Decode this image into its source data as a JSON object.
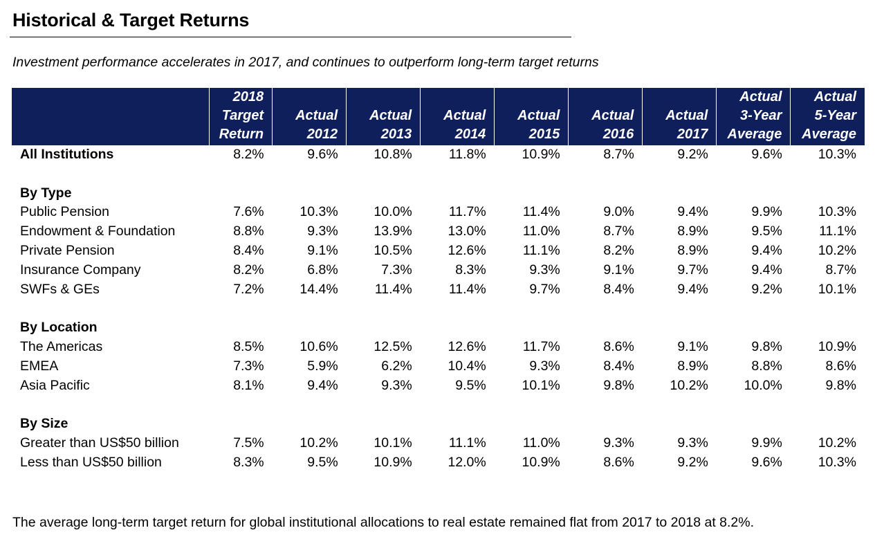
{
  "title": "Historical & Target Returns",
  "subtitle": "Investment performance accelerates in 2017, and continues to outperform long-term target returns",
  "header": {
    "columns": [
      [
        "2018",
        "Target",
        "Return"
      ],
      [
        "",
        "Actual",
        "2012"
      ],
      [
        "",
        "Actual",
        "2013"
      ],
      [
        "",
        "Actual",
        "2014"
      ],
      [
        "",
        "Actual",
        "2015"
      ],
      [
        "",
        "Actual",
        "2016"
      ],
      [
        "",
        "Actual",
        "2017"
      ],
      [
        "Actual",
        "3-Year",
        "Average"
      ],
      [
        "Actual",
        "5-Year",
        "Average"
      ]
    ]
  },
  "rows": {
    "all": {
      "label": "All Institutions",
      "values": [
        "8.2%",
        "9.6%",
        "10.8%",
        "11.8%",
        "10.9%",
        "8.7%",
        "9.2%",
        "9.6%",
        "10.3%"
      ]
    },
    "by_type": {
      "heading": "By Type",
      "items": [
        {
          "label": "Public Pension",
          "values": [
            "7.6%",
            "10.3%",
            "10.0%",
            "11.7%",
            "11.4%",
            "9.0%",
            "9.4%",
            "9.9%",
            "10.3%"
          ]
        },
        {
          "label": "Endowment & Foundation",
          "values": [
            "8.8%",
            "9.3%",
            "13.9%",
            "13.0%",
            "11.0%",
            "8.7%",
            "8.9%",
            "9.5%",
            "11.1%"
          ]
        },
        {
          "label": "Private Pension",
          "values": [
            "8.4%",
            "9.1%",
            "10.5%",
            "12.6%",
            "11.1%",
            "8.2%",
            "8.9%",
            "9.4%",
            "10.2%"
          ]
        },
        {
          "label": "Insurance Company",
          "values": [
            "8.2%",
            "6.8%",
            "7.3%",
            "8.3%",
            "9.3%",
            "9.1%",
            "9.7%",
            "9.4%",
            "8.7%"
          ]
        },
        {
          "label": "SWFs & GEs",
          "values": [
            "7.2%",
            "14.4%",
            "11.4%",
            "11.4%",
            "9.7%",
            "8.4%",
            "9.4%",
            "9.2%",
            "10.1%"
          ]
        }
      ]
    },
    "by_location": {
      "heading": "By Location",
      "items": [
        {
          "label": "The Americas",
          "values": [
            "8.5%",
            "10.6%",
            "12.5%",
            "12.6%",
            "11.7%",
            "8.6%",
            "9.1%",
            "9.8%",
            "10.9%"
          ]
        },
        {
          "label": "EMEA",
          "values": [
            "7.3%",
            "5.9%",
            "6.2%",
            "10.4%",
            "9.3%",
            "8.4%",
            "8.9%",
            "8.8%",
            "8.6%"
          ]
        },
        {
          "label": "Asia Pacific",
          "values": [
            "8.1%",
            "9.4%",
            "9.3%",
            "9.5%",
            "10.1%",
            "9.8%",
            "10.2%",
            "10.0%",
            "9.8%"
          ]
        }
      ]
    },
    "by_size": {
      "heading": "By Size",
      "items": [
        {
          "label": "Greater than US$50 billion",
          "values": [
            "7.5%",
            "10.2%",
            "10.1%",
            "11.1%",
            "11.0%",
            "9.3%",
            "9.3%",
            "9.9%",
            "10.2%"
          ]
        },
        {
          "label": "Less than US$50 billion",
          "values": [
            "8.3%",
            "9.5%",
            "10.9%",
            "12.0%",
            "10.9%",
            "8.6%",
            "9.2%",
            "9.6%",
            "10.3%"
          ]
        }
      ]
    }
  },
  "footnote": "The average long-term target return for global institutional allocations to real estate remained flat from 2017 to 2018 at 8.2%."
}
